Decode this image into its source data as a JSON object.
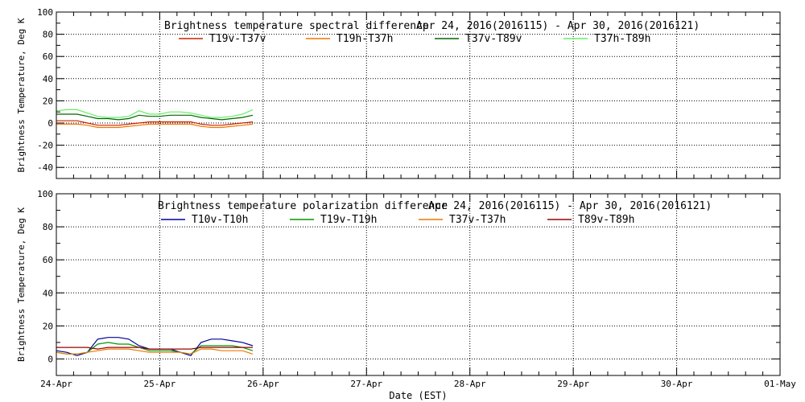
{
  "chart_data": [
    {
      "type": "line",
      "title": "Brightness temperature spectral difference",
      "date_range": "Apr 24, 2016(2016115) - Apr 30, 2016(2016121)",
      "ylabel": "Brightness Temperature, Deg K",
      "xlabel": "",
      "ylim": [
        -50,
        100
      ],
      "yticks": [
        -40,
        -20,
        0,
        20,
        40,
        60,
        80,
        100
      ],
      "ytick_labels": [
        "-40",
        "-20",
        "0",
        "20",
        "40",
        "60",
        "80",
        "100"
      ],
      "xlim": [
        0,
        7
      ],
      "xticks": [
        0,
        1,
        2,
        3,
        4,
        5,
        6,
        7
      ],
      "grid": true,
      "legend_position": "top",
      "series": [
        {
          "name": "T19v-T37v",
          "color": "#cc2200",
          "x": [
            0,
            0.1,
            0.2,
            0.3,
            0.4,
            0.5,
            0.6,
            0.7,
            0.8,
            0.9,
            1.0,
            1.1,
            1.2,
            1.3,
            1.4,
            1.5,
            1.6,
            1.7,
            1.8,
            1.9
          ],
          "y": [
            2,
            2,
            2,
            0,
            -2,
            -2,
            -2,
            -1,
            0,
            1,
            1,
            1,
            1,
            1,
            -1,
            -2,
            -2,
            -1,
            0,
            1
          ]
        },
        {
          "name": "T19h-T37h",
          "color": "#ee7700",
          "x": [
            0,
            0.1,
            0.2,
            0.3,
            0.4,
            0.5,
            0.6,
            0.7,
            0.8,
            0.9,
            1.0,
            1.1,
            1.2,
            1.3,
            1.4,
            1.5,
            1.6,
            1.7,
            1.8,
            1.9
          ],
          "y": [
            -1,
            -1,
            -1,
            -2,
            -4,
            -4,
            -4,
            -3,
            -2,
            -1,
            -1,
            -1,
            -1,
            -1,
            -3,
            -4,
            -4,
            -3,
            -2,
            -1
          ]
        },
        {
          "name": "T37v-T89v",
          "color": "#006600",
          "x": [
            0,
            0.1,
            0.2,
            0.3,
            0.4,
            0.5,
            0.6,
            0.7,
            0.8,
            0.9,
            1.0,
            1.1,
            1.2,
            1.3,
            1.4,
            1.5,
            1.6,
            1.7,
            1.8,
            1.9
          ],
          "y": [
            8,
            8,
            8,
            6,
            4,
            4,
            3,
            4,
            7,
            6,
            6,
            7,
            7,
            7,
            5,
            4,
            3,
            4,
            5,
            7
          ]
        },
        {
          "name": "T37h-T89h",
          "color": "#66ee66",
          "x": [
            0,
            0.1,
            0.2,
            0.3,
            0.4,
            0.5,
            0.6,
            0.7,
            0.8,
            0.9,
            1.0,
            1.1,
            1.2,
            1.3,
            1.4,
            1.5,
            1.6,
            1.7,
            1.8,
            1.9
          ],
          "y": [
            11,
            12,
            12,
            9,
            6,
            5,
            5,
            6,
            11,
            8,
            8,
            10,
            10,
            9,
            7,
            5,
            5,
            6,
            8,
            12
          ]
        }
      ]
    },
    {
      "type": "line",
      "title": "Brightness temperature polarization difference",
      "date_range": "Apr 24, 2016(2016115) - Apr 30, 2016(2016121)",
      "ylabel": "Brightness Temperature, Deg K",
      "xlabel": "Date (EST)",
      "ylim": [
        -10,
        100
      ],
      "yticks": [
        0,
        20,
        40,
        60,
        80,
        100
      ],
      "ytick_labels": [
        "0",
        "20",
        "40",
        "60",
        "80",
        "100"
      ],
      "xlim": [
        0,
        7
      ],
      "xticks": [
        0,
        1,
        2,
        3,
        4,
        5,
        6,
        7
      ],
      "xtick_labels": [
        "24-Apr",
        "25-Apr",
        "26-Apr",
        "27-Apr",
        "28-Apr",
        "29-Apr",
        "30-Apr",
        "01-May"
      ],
      "grid": true,
      "legend_position": "top",
      "series": [
        {
          "name": "T10v-T10h",
          "color": "#000099",
          "x": [
            0,
            0.1,
            0.2,
            0.3,
            0.4,
            0.5,
            0.6,
            0.7,
            0.8,
            0.9,
            1.0,
            1.1,
            1.2,
            1.3,
            1.4,
            1.5,
            1.6,
            1.7,
            1.8,
            1.9
          ],
          "y": [
            5,
            4,
            2,
            4,
            12,
            13,
            13,
            12,
            8,
            6,
            6,
            6,
            4,
            2,
            10,
            12,
            12,
            11,
            10,
            8
          ]
        },
        {
          "name": "T19v-T19h",
          "color": "#009900",
          "x": [
            0,
            0.1,
            0.2,
            0.3,
            0.4,
            0.5,
            0.6,
            0.7,
            0.8,
            0.9,
            1.0,
            1.1,
            1.2,
            1.3,
            1.4,
            1.5,
            1.6,
            1.7,
            1.8,
            1.9
          ],
          "y": [
            4,
            3,
            3,
            4,
            9,
            10,
            9,
            9,
            7,
            5,
            5,
            5,
            4,
            3,
            8,
            8,
            8,
            8,
            7,
            5
          ]
        },
        {
          "name": "T37v-T37h",
          "color": "#ee7700",
          "x": [
            0,
            0.1,
            0.2,
            0.3,
            0.4,
            0.5,
            0.6,
            0.7,
            0.8,
            0.9,
            1.0,
            1.1,
            1.2,
            1.3,
            1.4,
            1.5,
            1.6,
            1.7,
            1.8,
            1.9
          ],
          "y": [
            4,
            3,
            3,
            4,
            5,
            6,
            6,
            6,
            5,
            4,
            4,
            4,
            4,
            3,
            6,
            6,
            5,
            5,
            5,
            3
          ]
        },
        {
          "name": "T89v-T89h",
          "color": "#990000",
          "x": [
            0,
            0.1,
            0.2,
            0.3,
            0.4,
            0.5,
            0.6,
            0.7,
            0.8,
            0.9,
            1.0,
            1.1,
            1.2,
            1.3,
            1.4,
            1.5,
            1.6,
            1.7,
            1.8,
            1.9
          ],
          "y": [
            7,
            7,
            7,
            7,
            6,
            7,
            7,
            7,
            7,
            6,
            6,
            6,
            6,
            6,
            7,
            7,
            7,
            7,
            7,
            7
          ]
        }
      ]
    }
  ]
}
